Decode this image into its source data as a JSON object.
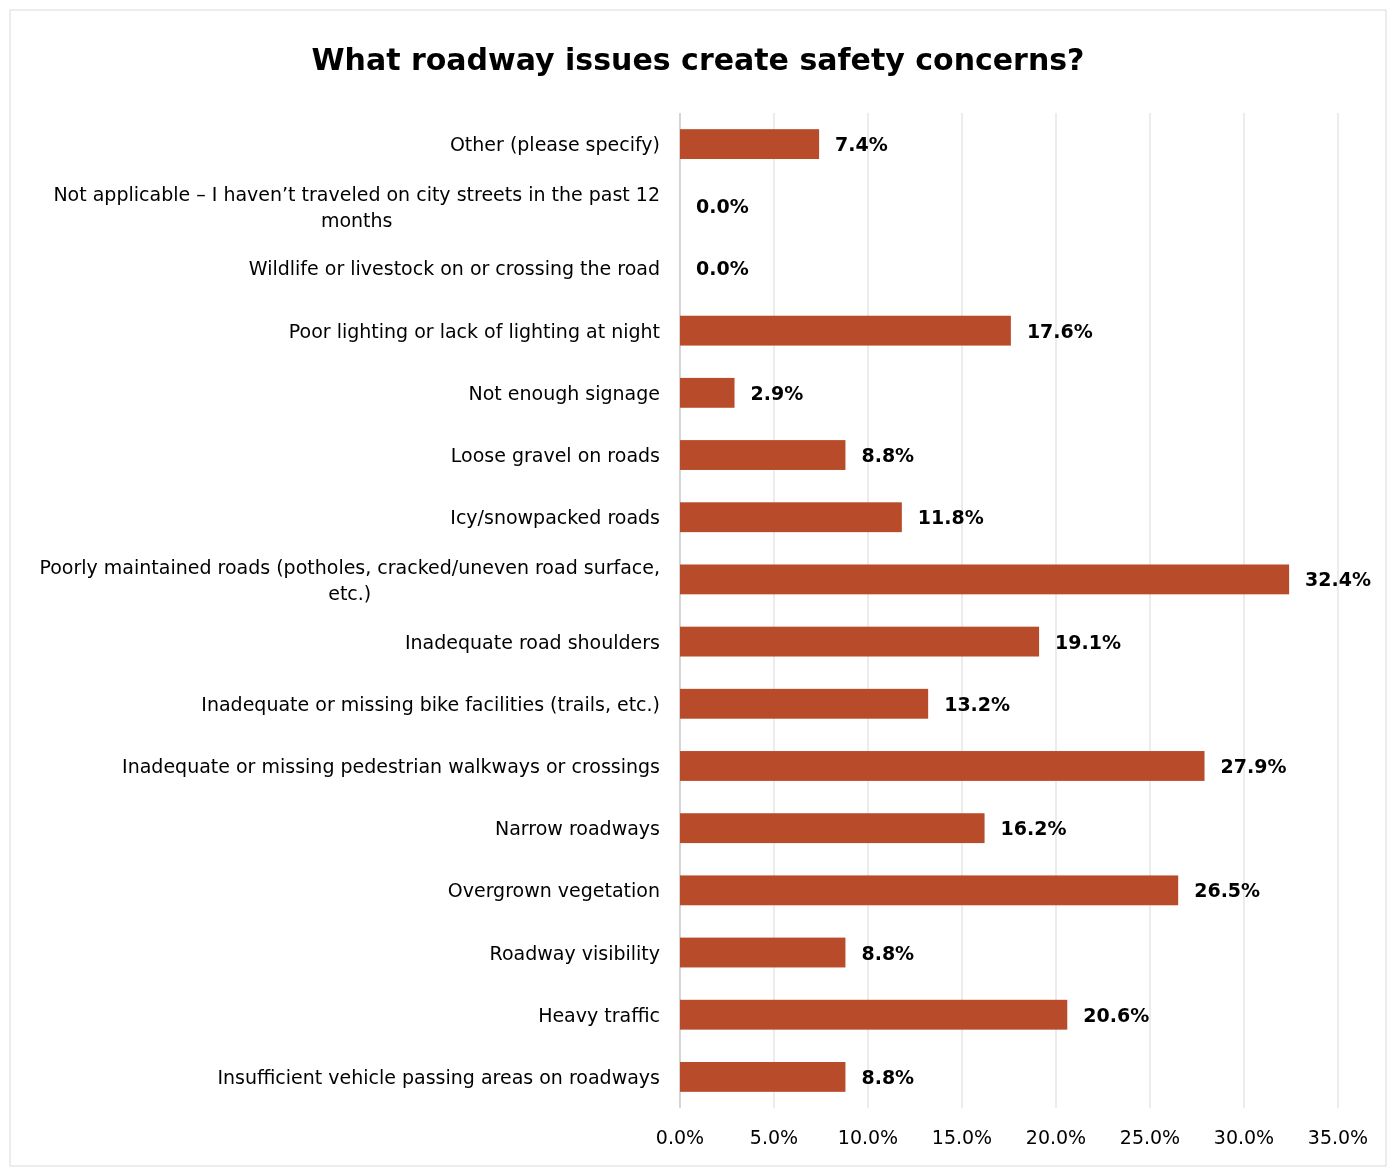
{
  "chart_data": {
    "type": "bar",
    "orientation": "horizontal",
    "title": "What roadway issues create safety concerns?",
    "categories": [
      "Other (please specify)",
      "Not applicable – I haven’t traveled on city streets in the past 12 months",
      "Wildlife or livestock on or crossing the road",
      "Poor lighting or lack of lighting at night",
      "Not enough signage",
      "Loose gravel on roads",
      "Icy/snowpacked roads",
      "Poorly maintained roads (potholes, cracked/uneven road surface, etc.)",
      "Inadequate road shoulders",
      "Inadequate or missing bike facilities (trails, etc.)",
      "Inadequate or missing pedestrian walkways or crossings",
      "Narrow roadways",
      "Overgrown vegetation",
      "Roadway visibility",
      "Heavy traffic",
      "Insufficient vehicle passing areas on roadways"
    ],
    "values": [
      7.4,
      0.0,
      0.0,
      17.6,
      2.9,
      8.8,
      11.8,
      32.4,
      19.1,
      13.2,
      27.9,
      16.2,
      26.5,
      8.8,
      20.6,
      8.8
    ],
    "value_labels": [
      "7.4%",
      "0.0%",
      "0.0%",
      "17.6%",
      "2.9%",
      "8.8%",
      "11.8%",
      "32.4%",
      "19.1%",
      "13.2%",
      "27.9%",
      "16.2%",
      "26.5%",
      "8.8%",
      "20.6%",
      "8.8%"
    ],
    "color": "#b84c2a",
    "xlim": [
      0,
      35
    ],
    "xticks": [
      {
        "value": 0,
        "label": "0.0%"
      },
      {
        "value": 5,
        "label": "5.0%"
      },
      {
        "value": 10,
        "label": "10.0%"
      },
      {
        "value": 15,
        "label": "15.0%"
      },
      {
        "value": 20,
        "label": "20.0%"
      },
      {
        "value": 25,
        "label": "25.0%"
      },
      {
        "value": 30,
        "label": "30.0%"
      },
      {
        "value": 35,
        "label": "35.0%"
      }
    ],
    "grid": "x"
  }
}
